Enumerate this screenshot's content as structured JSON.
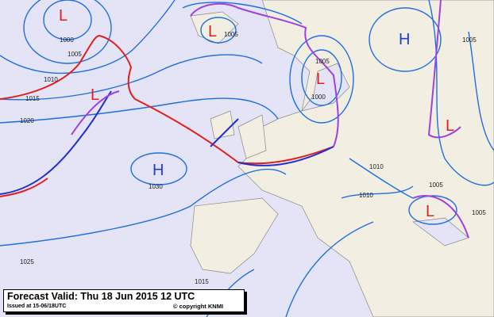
{
  "caption": {
    "title": "Forecast Valid:  Thu 18 Jun 2015 12 UTC",
    "issued": "Issued at 15-06/18UTC",
    "copyright": "© copyright KNMI"
  },
  "colors": {
    "isobar": "#1e6fe0",
    "cold_front": "#2030d0",
    "warm_front": "#e02020",
    "occlusion": "#a040e0",
    "low": "#e02020",
    "high": "#2040d0",
    "land": "#f2eee2",
    "sea": "#e4e4f6"
  },
  "pressure_centers": [
    {
      "type": "L",
      "label": "L"
    },
    {
      "type": "L",
      "label": "L"
    },
    {
      "type": "H",
      "label": "H"
    },
    {
      "type": "L",
      "label": "L"
    },
    {
      "type": "L",
      "label": "L"
    },
    {
      "type": "H",
      "label": "H"
    },
    {
      "type": "L",
      "label": "L"
    },
    {
      "type": "L",
      "label": "L"
    }
  ],
  "isobar_labels": [
    "1000",
    "1005",
    "1010",
    "1015",
    "1020",
    "1030",
    "1025",
    "1005",
    "1005",
    "1010",
    "1010",
    "1005",
    "1005",
    "1005",
    "1000",
    "1015"
  ]
}
